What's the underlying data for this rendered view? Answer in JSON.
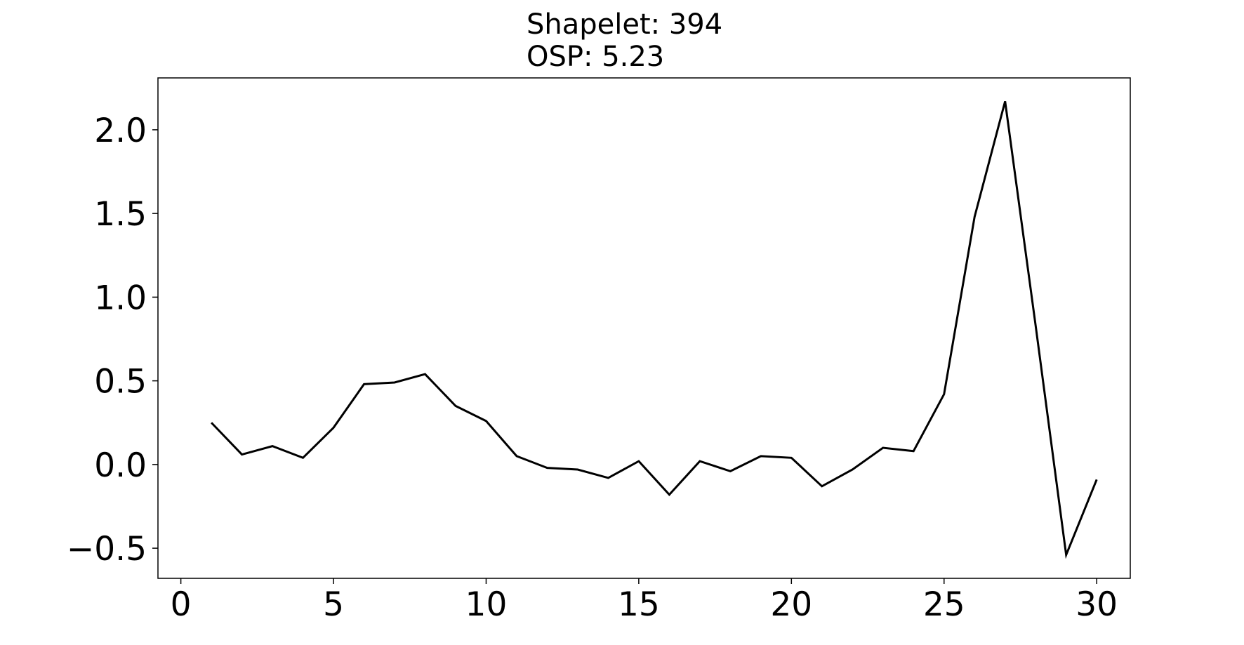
{
  "chart_data": {
    "type": "line",
    "title_lines": [
      "Shapelet: 394",
      "OSP: 5.23"
    ],
    "xlabel": "",
    "ylabel": "",
    "xlim": [
      -0.75,
      31.1
    ],
    "ylim": [
      -0.68,
      2.31
    ],
    "x_ticks": [
      0,
      5,
      10,
      15,
      20,
      25,
      30
    ],
    "y_ticks": [
      -0.5,
      0.0,
      0.5,
      1.0,
      1.5,
      2.0
    ],
    "y_tick_labels": [
      "−0.5",
      "0.0",
      "0.5",
      "1.0",
      "1.5",
      "2.0"
    ],
    "grid": false,
    "line_color": "#000000",
    "series": [
      {
        "x": [
          1,
          2,
          3,
          4,
          5,
          6,
          7,
          8,
          9,
          10,
          11,
          12,
          13,
          14,
          15,
          16,
          17,
          18,
          19,
          20,
          21,
          22,
          23,
          24,
          25,
          26,
          27,
          28,
          29,
          30
        ],
        "values": [
          0.25,
          0.06,
          0.11,
          0.04,
          0.22,
          0.48,
          0.49,
          0.54,
          0.35,
          0.26,
          0.05,
          -0.02,
          -0.03,
          -0.08,
          0.02,
          -0.18,
          0.02,
          -0.04,
          0.05,
          0.04,
          -0.13,
          -0.03,
          0.1,
          0.08,
          0.42,
          1.48,
          2.17,
          0.83,
          -0.54,
          -0.09
        ]
      }
    ]
  }
}
